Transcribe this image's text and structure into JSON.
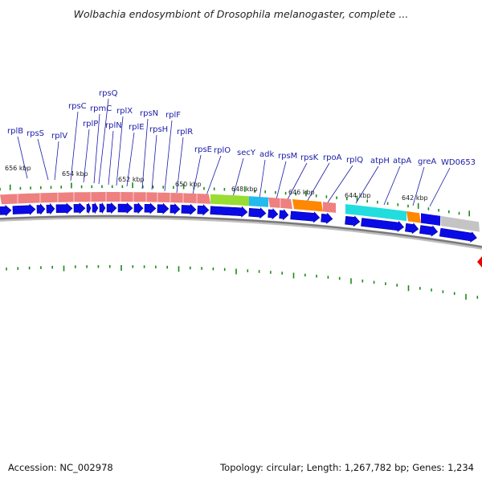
{
  "title": "Wolbachia endosymbiont of Drosophila melanogaster, complete ...",
  "footer": {
    "accession": "Accession: NC_002978",
    "summary": "Topology: circular; Length: 1,267,782 bp; Genes: 1,234"
  },
  "colors": {
    "cds_arrow": "#0a0ae6",
    "ribosomal_protein": "#ee8080",
    "secY": "#99dd33",
    "adk": "#22bbee",
    "rpoA": "#ff8800",
    "atp": "#22dddd",
    "greA": "#ff8800",
    "WD0653": "#0a0ae6",
    "other": "#c4c4c4",
    "tick": "#1a8a1a",
    "backbone": "#808080",
    "label_text": "#1a1aa8",
    "edge_marker": "#ee0000"
  },
  "kbp_labels": [
    "656 kbp",
    "654 kbp",
    "652 kbp",
    "650 kbp",
    "648 kbp",
    "646 kbp",
    "644 kbp",
    "642 kbp"
  ],
  "gene_labels": [
    "rplB",
    "rpsS",
    "rplV",
    "rpsC",
    "rplP",
    "rpmC",
    "rpsQ",
    "rplN",
    "rplX",
    "rplE",
    "rpsN",
    "rpsH",
    "rplF",
    "rplR",
    "rpsE",
    "rplO",
    "secY",
    "adk",
    "rpsM",
    "rpsK",
    "rpoA",
    "rplQ",
    "atpH",
    "atpA",
    "greA",
    "WD0653"
  ]
}
